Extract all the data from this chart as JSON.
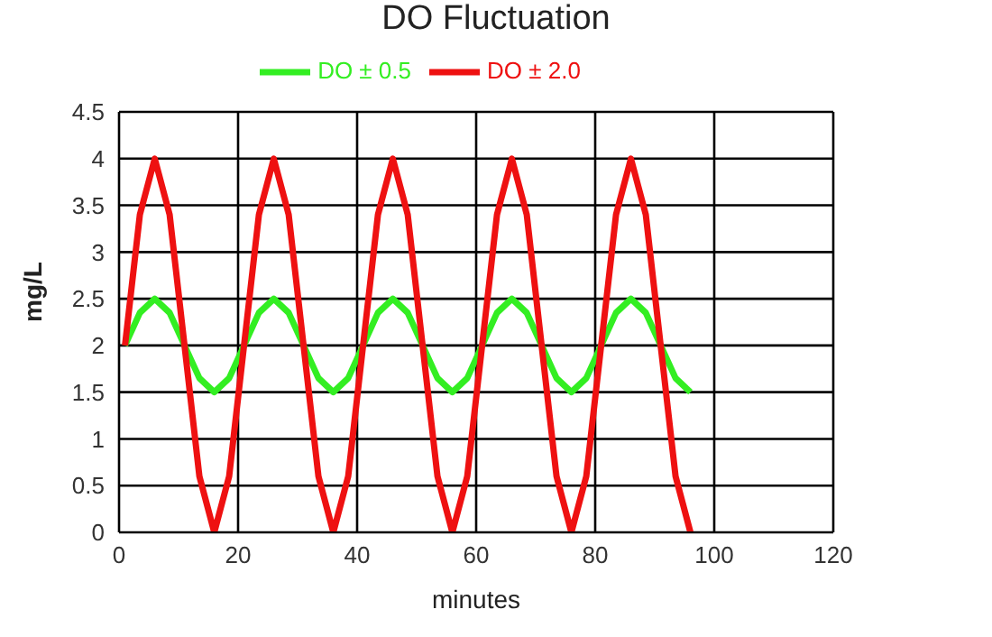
{
  "chart_data": {
    "type": "line",
    "title": "DO Fluctuation",
    "xlabel": "minutes",
    "ylabel": "mg/L",
    "x": [
      1,
      3.5,
      6,
      8.5,
      11,
      13.5,
      16,
      18.5,
      21,
      23.5,
      26,
      28.5,
      31,
      33.5,
      36,
      38.5,
      41,
      43.5,
      46,
      48.5,
      51,
      53.5,
      56,
      58.5,
      61,
      63.5,
      66,
      68.5,
      71,
      73.5,
      76,
      78.5,
      81,
      83.5,
      86,
      88.5,
      91,
      93.5,
      96
    ],
    "series": [
      {
        "name": "DO ± 0.5",
        "color": "#33ee22",
        "values": [
          2,
          2.35,
          2.5,
          2.35,
          2,
          1.65,
          1.5,
          1.65,
          2,
          2.35,
          2.5,
          2.35,
          2,
          1.65,
          1.5,
          1.65,
          2,
          2.35,
          2.5,
          2.35,
          2,
          1.65,
          1.5,
          1.65,
          2,
          2.35,
          2.5,
          2.35,
          2,
          1.65,
          1.5,
          1.65,
          2,
          2.35,
          2.5,
          2.35,
          2,
          1.65,
          1.5
        ]
      },
      {
        "name": "DO ± 2.0",
        "color": "#ee1111",
        "values": [
          2,
          3.4,
          4,
          3.4,
          2,
          0.6,
          0,
          0.6,
          2,
          3.4,
          4,
          3.4,
          2,
          0.6,
          0,
          0.6,
          2,
          3.4,
          4,
          3.4,
          2,
          0.6,
          0,
          0.6,
          2,
          3.4,
          4,
          3.4,
          2,
          0.6,
          0,
          0.6,
          2,
          3.4,
          4,
          3.4,
          2,
          0.6,
          0
        ]
      }
    ],
    "xlim": [
      0,
      120
    ],
    "xticks": [
      0,
      20,
      40,
      60,
      80,
      100,
      120
    ],
    "ylim": [
      0,
      4.5
    ],
    "yticks": [
      0,
      0.5,
      1,
      1.5,
      2,
      2.5,
      3,
      3.5,
      4,
      4.5
    ],
    "grid": true,
    "legend": "top",
    "marker": "none",
    "line_style": "solid"
  }
}
